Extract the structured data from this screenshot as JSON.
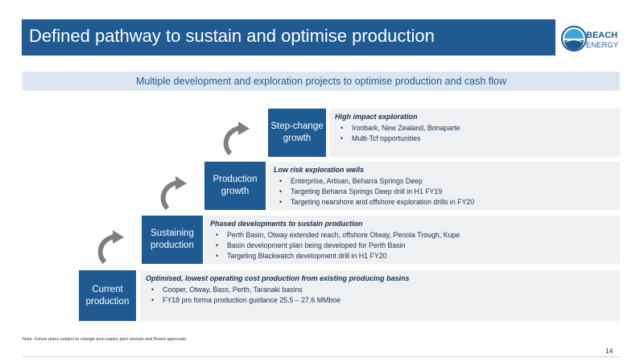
{
  "slide": {
    "title": "Defined pathway to sustain and optimise production",
    "subtitle": "Multiple development and exploration projects to optimise production and cash flow",
    "logo": {
      "line1": "BEACH",
      "line2": "ENERGY",
      "icon": "beach-energy-logo-icon"
    },
    "note": "Note: Future plans subject to change and require joint venture and Board approvals.",
    "page_number": "14"
  },
  "steps": [
    {
      "label": [
        "Current",
        "production"
      ],
      "heading": "Optimised, lowest operating cost production from existing producing basins",
      "bullets": [
        "Cooper, Otway, Bass, Perth, Taranaki basins",
        "FY18 pro forma production guidance 25.5 – 27.6 MMboe"
      ]
    },
    {
      "label": [
        "Sustaining",
        "production"
      ],
      "heading": "Phased developments to sustain production",
      "bullets": [
        "Perth Basin, Otway extended reach, offshore Otway, Penola Trough, Kupe",
        "Basin development plan being developed for Perth Basin",
        "Targeting Blackwatch development drill in H1 FY20"
      ]
    },
    {
      "label": [
        "Production",
        "growth"
      ],
      "heading": "Low risk exploration wells",
      "bullets": [
        "Enterprise, Artisan, Beharra Springs Deep",
        "Targeting Beharra Springs Deep drill in H1 FY19",
        "Targeting nearshore and offshore exploration drills in FY20"
      ]
    },
    {
      "label": [
        "Step-change",
        "growth"
      ],
      "heading": "High impact exploration",
      "bullets": [
        "Ironbark, New Zealand, Bonaparte",
        "Multi-Tcf opportunities"
      ]
    }
  ],
  "colors": {
    "primary": "#1f5a93",
    "panel": "#eef0f2",
    "arrow": "#7f7f7f",
    "subtitle_bg": "#dde6f0"
  }
}
